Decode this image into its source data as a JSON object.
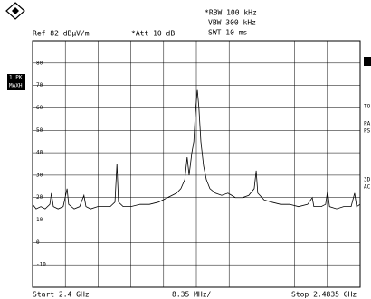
{
  "chart_data": {
    "type": "line",
    "annotations": {
      "rbw": "*RBW 100 kHz",
      "vbw": "VBW 300 kHz",
      "swt": "SWT 10 ms",
      "ref": "Ref 82 dBµV/m",
      "att": "*Att 10 dB",
      "trace_1": "1 PK",
      "trace_2": "MAXH",
      "side_1": "TO",
      "side_2": "PA",
      "side_3": "PS",
      "side_4": "3D",
      "side_5": "AC",
      "start": "Start 2.4 GHz",
      "span": "8.35 MHz/",
      "stop": "Stop 2.4835 GHz"
    },
    "x": [
      2.4,
      2.4009,
      2.4021,
      2.4032,
      2.4044,
      2.4048,
      2.4053,
      2.4065,
      2.4078,
      2.4088,
      2.4092,
      2.4106,
      2.412,
      2.4131,
      2.4136,
      2.4148,
      2.4166,
      2.4182,
      2.4198,
      2.421,
      2.4215,
      2.4219,
      2.4231,
      2.4251,
      2.4274,
      2.4298,
      2.4321,
      2.4344,
      2.4367,
      2.4378,
      2.4388,
      2.4394,
      2.4399,
      2.4406,
      2.4411,
      2.4415,
      2.442,
      2.4424,
      2.4429,
      2.4436,
      2.4443,
      2.4452,
      2.4466,
      2.4482,
      2.4498,
      2.4517,
      2.4535,
      2.4551,
      2.4565,
      2.457,
      2.4574,
      2.459,
      2.4609,
      2.4632,
      2.4655,
      2.4678,
      2.4701,
      2.4713,
      2.4717,
      2.4736,
      2.4747,
      2.4752,
      2.4757,
      2.4775,
      2.4793,
      2.4812,
      2.4821,
      2.4826,
      2.4835
    ],
    "series": [
      {
        "color": "#000000",
        "values": [
          17,
          15,
          16,
          15,
          17,
          22,
          16,
          15,
          16,
          24,
          17,
          15,
          16,
          21,
          16,
          15,
          16,
          16,
          16,
          18,
          35,
          18,
          16,
          16,
          17,
          17,
          18,
          20,
          22,
          24,
          28,
          38,
          30,
          40,
          45,
          58,
          68,
          60,
          45,
          34,
          28,
          24,
          22,
          21,
          22,
          20,
          20,
          21,
          24,
          32,
          22,
          19,
          18,
          17,
          17,
          16,
          17,
          20,
          16,
          16,
          17,
          23,
          16,
          15,
          16,
          16,
          22,
          16,
          17
        ]
      }
    ],
    "xlim": [
      2.4,
      2.4835
    ],
    "ylim": [
      -20,
      90
    ],
    "yticks": [
      80,
      70,
      60,
      50,
      40,
      30,
      20,
      10,
      0,
      -10
    ],
    "grid": true
  }
}
